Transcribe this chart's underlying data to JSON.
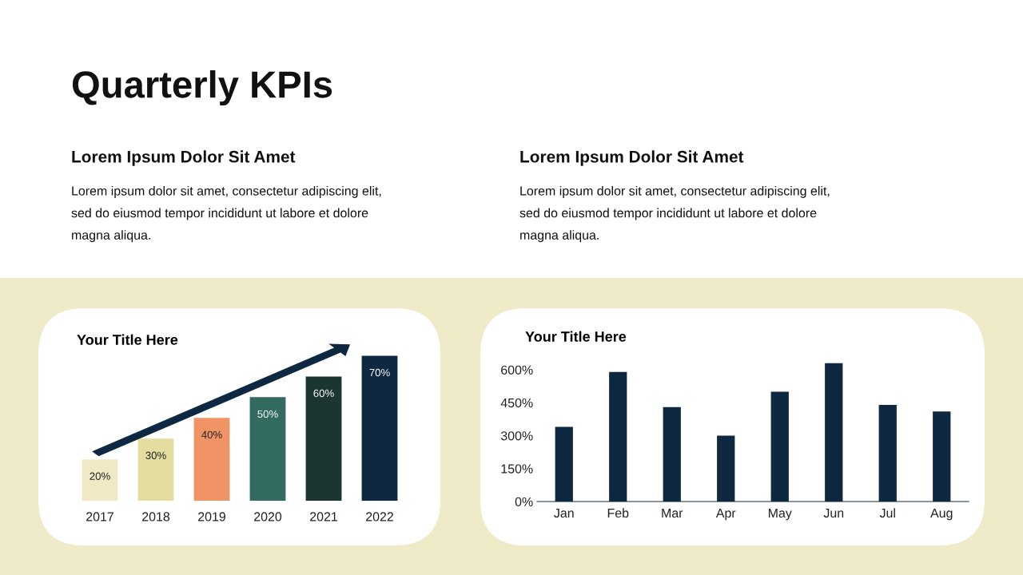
{
  "chart_data": [
    {
      "type": "bar",
      "title": "Your Title Here",
      "categories": [
        "2017",
        "2018",
        "2019",
        "2020",
        "2021",
        "2022"
      ],
      "values": [
        20,
        30,
        40,
        50,
        60,
        70
      ],
      "colors": [
        "#efe9c6",
        "#e3dea0",
        "#f09466",
        "#336b60",
        "#1b3530",
        "#0f2842"
      ],
      "value_labels": [
        "20%",
        "30%",
        "40%",
        "50%",
        "60%",
        "70%"
      ],
      "tick_labels": "x",
      "annotations": [
        "Quarterly KPIs",
        "Lorem Ipsum Dolor Sit Amet",
        "Lorem ipsum dolor sit amet, consectetur adipiscing elit,\nsed do eiusmod tempor incididunt ut labore et dolore\nmagna aliqua."
      ]
    },
    {
      "type": "bar",
      "title": "Your Title Here",
      "categories": [
        "Jan",
        "Feb",
        "Mar",
        "Apr",
        "May",
        "Jun",
        "Jul",
        "Aug"
      ],
      "values": [
        340,
        590,
        430,
        300,
        500,
        630,
        440,
        410
      ],
      "color": "#0f2842",
      "ylim": [
        0,
        640
      ],
      "yticks": [
        {
          "value": 0,
          "label": "0%"
        },
        {
          "value": 150,
          "label": "150%"
        },
        {
          "value": 300,
          "label": "300%"
        },
        {
          "value": 450,
          "label": "450%"
        },
        {
          "value": 600,
          "label": "600%"
        }
      ],
      "annotations": [
        "Lorem Ipsum Dolor Sit Amet",
        "Lorem ipsum dolor sit amet, consectetur adipiscing elit,\nsed do eiusmod tempor incididunt ut labore et dolore\nmagna aliqua."
      ]
    }
  ]
}
